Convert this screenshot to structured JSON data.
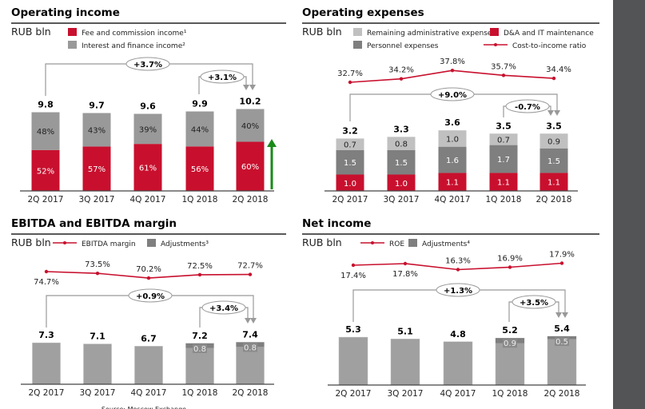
{
  "colors": {
    "red": "#c8102e",
    "grey": "#999999",
    "dark_grey": "#7f7f7f",
    "light_grey": "#c0c0c0",
    "growth_arrow": "#1a8a1a",
    "sidebar": "#525456"
  },
  "source_note": "Source: Moscow Exchange",
  "chart_data": [
    {
      "id": "operating-income",
      "type": "bar",
      "title": "Operating income",
      "unit": "RUB bln",
      "categories": [
        "2Q 2017",
        "3Q 2017",
        "4Q 2017",
        "1Q 2018",
        "2Q 2018"
      ],
      "totals": [
        "9.8",
        "9.7",
        "9.6",
        "9.9",
        "10.2"
      ],
      "total_values": [
        9.8,
        9.7,
        9.6,
        9.9,
        10.2
      ],
      "stacked": true,
      "series": [
        {
          "name": "Fee and commission income¹",
          "color": "#c8102e",
          "share_pct": [
            52,
            57,
            61,
            56,
            60
          ],
          "labels": [
            "52%",
            "57%",
            "61%",
            "56%",
            "60%"
          ]
        },
        {
          "name": "Interest and finance income²",
          "color": "#999999",
          "share_pct": [
            48,
            43,
            39,
            44,
            40
          ],
          "labels": [
            "48%",
            "43%",
            "39%",
            "44%",
            "40%"
          ]
        }
      ],
      "growth": [
        {
          "label": "+3.7%",
          "from": "2Q 2017",
          "to": "2Q 2018"
        },
        {
          "label": "+3.1%",
          "from": "1Q 2018",
          "to": "2Q 2018"
        }
      ],
      "up_arrow_icon": "green-up-arrow"
    },
    {
      "id": "operating-expenses",
      "type": "bar",
      "title": "Operating expenses",
      "unit": "RUB bln",
      "categories": [
        "2Q 2017",
        "3Q 2017",
        "4Q 2017",
        "1Q 2018",
        "2Q 2018"
      ],
      "totals": [
        "3.2",
        "3.3",
        "3.6",
        "3.5",
        "3.5"
      ],
      "stacked": true,
      "series": [
        {
          "name": "D&A and IT maintenance",
          "color": "#c8102e",
          "values": [
            1.0,
            1.0,
            1.1,
            1.1,
            1.1
          ],
          "labels": [
            "1.0",
            "1.0",
            "1.1",
            "1.1",
            "1.1"
          ]
        },
        {
          "name": "Personnel expenses",
          "color": "#7f7f7f",
          "values": [
            1.5,
            1.5,
            1.6,
            1.7,
            1.5
          ],
          "labels": [
            "1.5",
            "1.5",
            "1.6",
            "1.7",
            "1.5"
          ]
        },
        {
          "name": "Remaining administrative expenses",
          "color": "#c0c0c0",
          "values": [
            0.7,
            0.8,
            1.0,
            0.7,
            0.9
          ],
          "labels": [
            "0.7",
            "0.8",
            "1.0",
            "0.7",
            "0.9"
          ]
        }
      ],
      "line": {
        "name": "Cost-to-income ratio",
        "color": "#c8102e",
        "values": [
          32.7,
          34.2,
          37.8,
          35.7,
          34.4
        ],
        "labels": [
          "32.7%",
          "34.2%",
          "37.8%",
          "35.7%",
          "34.4%"
        ]
      },
      "growth": [
        {
          "label": "+9.0%",
          "from": "2Q 2017",
          "to": "2Q 2018"
        },
        {
          "label": "-0.7%",
          "from": "1Q 2018",
          "to": "2Q 2018"
        }
      ]
    },
    {
      "id": "ebitda",
      "type": "bar",
      "title": "EBITDA and EBITDA margin",
      "unit": "RUB bln",
      "categories": [
        "2Q 2017",
        "3Q 2017",
        "4Q 2017",
        "1Q 2018",
        "2Q 2018"
      ],
      "totals": [
        "7.3",
        "7.1",
        "6.7",
        "7.2",
        "7.4"
      ],
      "total_values": [
        7.3,
        7.1,
        6.7,
        7.2,
        7.4
      ],
      "adjustments": {
        "name": "Adjustments³",
        "color": "#7f7f7f",
        "values": [
          null,
          null,
          null,
          0.8,
          0.8
        ],
        "labels": [
          "",
          "",
          "",
          "0.8",
          "0.8"
        ]
      },
      "line": {
        "name": "EBITDA margin",
        "color": "#c8102e",
        "values": [
          74.7,
          73.5,
          70.2,
          72.5,
          72.7
        ],
        "labels": [
          "74.7%",
          "73.5%",
          "70.2%",
          "72.5%",
          "72.7%"
        ]
      },
      "growth": [
        {
          "label": "+0.9%",
          "from": "2Q 2017",
          "to": "2Q 2018"
        },
        {
          "label": "+3.4%",
          "from": "1Q 2018",
          "to": "2Q 2018"
        }
      ]
    },
    {
      "id": "net-income",
      "type": "bar",
      "title": "Net income",
      "unit": "RUB bln",
      "categories": [
        "2Q 2017",
        "3Q 2017",
        "4Q 2017",
        "1Q 2018",
        "2Q 2018"
      ],
      "totals": [
        "5.3",
        "5.1",
        "4.8",
        "5.2",
        "5.4"
      ],
      "total_values": [
        5.3,
        5.1,
        4.8,
        5.2,
        5.4
      ],
      "adjustments": {
        "name": "Adjustments⁴",
        "color": "#7f7f7f",
        "values": [
          null,
          null,
          null,
          0.9,
          0.5
        ],
        "labels": [
          "",
          "",
          "",
          "0.9",
          "0.5"
        ]
      },
      "line": {
        "name": "ROE",
        "color": "#c8102e",
        "values": [
          17.4,
          17.8,
          16.3,
          16.9,
          17.9
        ],
        "labels": [
          "17.4%",
          "17.8%",
          "16.3%",
          "16.9%",
          "17.9%"
        ]
      },
      "growth": [
        {
          "label": "+1.3%",
          "from": "2Q 2017",
          "to": "2Q 2018"
        },
        {
          "label": "+3.5%",
          "from": "1Q 2018",
          "to": "2Q 2018"
        }
      ]
    }
  ]
}
